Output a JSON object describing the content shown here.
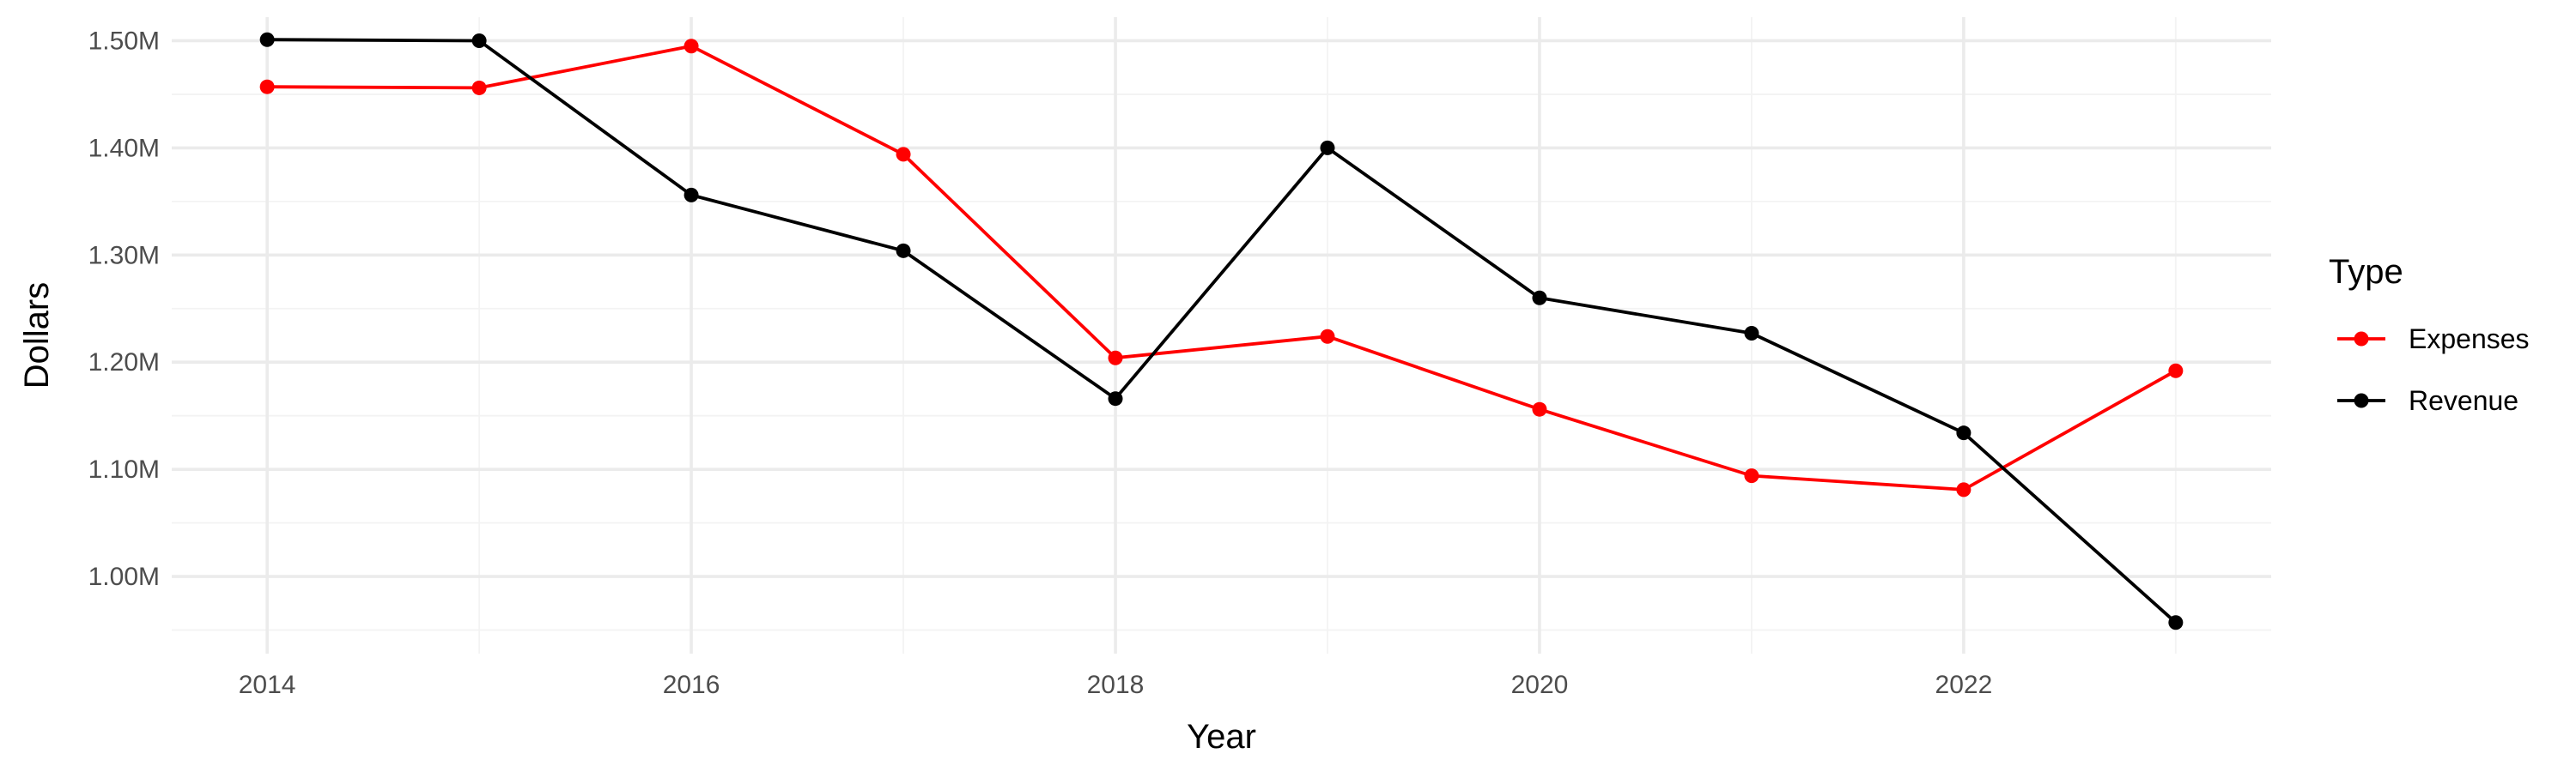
{
  "chart_data": {
    "type": "line",
    "xlabel": "Year",
    "ylabel": "Dollars",
    "x": [
      2014,
      2015,
      2016,
      2017,
      2018,
      2019,
      2020,
      2021,
      2022,
      2023
    ],
    "x_ticks": [
      2014,
      2016,
      2018,
      2020,
      2022
    ],
    "x_tick_labels": [
      "2014",
      "2016",
      "2018",
      "2020",
      "2022"
    ],
    "xlim": [
      2013.55,
      2023.45
    ],
    "y_ticks": [
      1000000,
      1100000,
      1200000,
      1300000,
      1400000,
      1500000
    ],
    "y_tick_labels": [
      "1.00M",
      "1.10M",
      "1.20M",
      "1.30M",
      "1.40M",
      "1.50M"
    ],
    "ylim": [
      928000,
      1522000
    ],
    "grid": true,
    "legend": {
      "title": "Type",
      "placement": "right"
    },
    "series": [
      {
        "name": "Expenses",
        "color": "#ff0000",
        "values": [
          1457000,
          1456000,
          1495000,
          1394000,
          1204000,
          1224000,
          1156000,
          1094000,
          1081000,
          1192000
        ]
      },
      {
        "name": "Revenue",
        "color": "#000000",
        "values": [
          1501000,
          1500000,
          1356000,
          1304000,
          1166000,
          1400000,
          1260000,
          1227000,
          1134000,
          957000
        ]
      }
    ]
  }
}
